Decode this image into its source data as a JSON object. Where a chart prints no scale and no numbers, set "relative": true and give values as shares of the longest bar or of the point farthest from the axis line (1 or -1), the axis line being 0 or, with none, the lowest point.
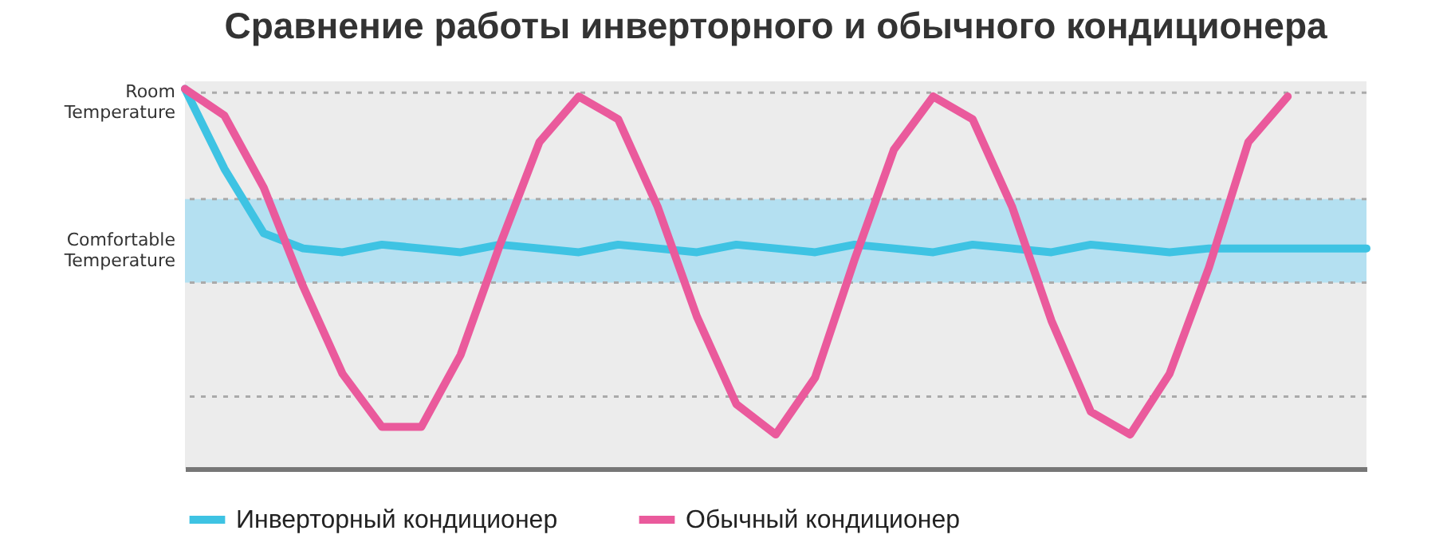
{
  "chart_data": {
    "type": "line",
    "title": "Сравнение работы инверторного и обычного  кондиционера",
    "relative": true,
    "categories": [
      null,
      null,
      null,
      null,
      null,
      null,
      null,
      null,
      null,
      null,
      null,
      null,
      null,
      null,
      null,
      null,
      null,
      null,
      null,
      null,
      null,
      null,
      null,
      null,
      null,
      null,
      null,
      null,
      null,
      null,
      null
    ],
    "series": [
      {
        "name": "Инверторный кондиционер",
        "color": "#3ec3e3",
        "values": [
          1.0,
          0.79,
          0.62,
          0.58,
          0.57,
          0.59,
          0.58,
          0.57,
          0.59,
          0.58,
          0.57,
          0.59,
          0.58,
          0.57,
          0.59,
          0.58,
          0.57,
          0.59,
          0.58,
          0.57,
          0.59,
          0.58,
          0.57,
          0.59,
          0.58,
          0.57,
          0.58,
          0.58,
          0.58,
          0.58,
          0.58
        ]
      },
      {
        "name": "Обычный кондиционер",
        "color": "#ea5a9c",
        "values": [
          1.0,
          0.93,
          0.74,
          0.48,
          0.25,
          0.11,
          0.11,
          0.3,
          0.59,
          0.86,
          0.98,
          0.92,
          0.69,
          0.4,
          0.17,
          0.09,
          0.24,
          0.55,
          0.84,
          0.98,
          0.92,
          0.69,
          0.39,
          0.15,
          0.09,
          0.25,
          0.53,
          0.86,
          0.98,
          null,
          null
        ]
      }
    ],
    "ref_lines": [
      {
        "axis": "y",
        "value": 0.99,
        "label": "Room Temperature",
        "line_style": "dotted",
        "color": "#aaaaaa"
      },
      {
        "axis": "y",
        "value": 0.71,
        "line_style": "dotted",
        "color": "#aaaaaa"
      },
      {
        "axis": "y",
        "value": 0.49,
        "line_style": "dotted",
        "color": "#aaaaaa"
      },
      {
        "axis": "y",
        "value": 0.19,
        "line_style": "dotted",
        "color": "#aaaaaa"
      }
    ],
    "bands": [
      {
        "axis": "y",
        "from": 0.49,
        "to": 0.71,
        "label": "Comfortable Temperature",
        "color": "#a6ddf2"
      }
    ],
    "legend": "bottom",
    "line_style": "solid",
    "marker": "none"
  }
}
